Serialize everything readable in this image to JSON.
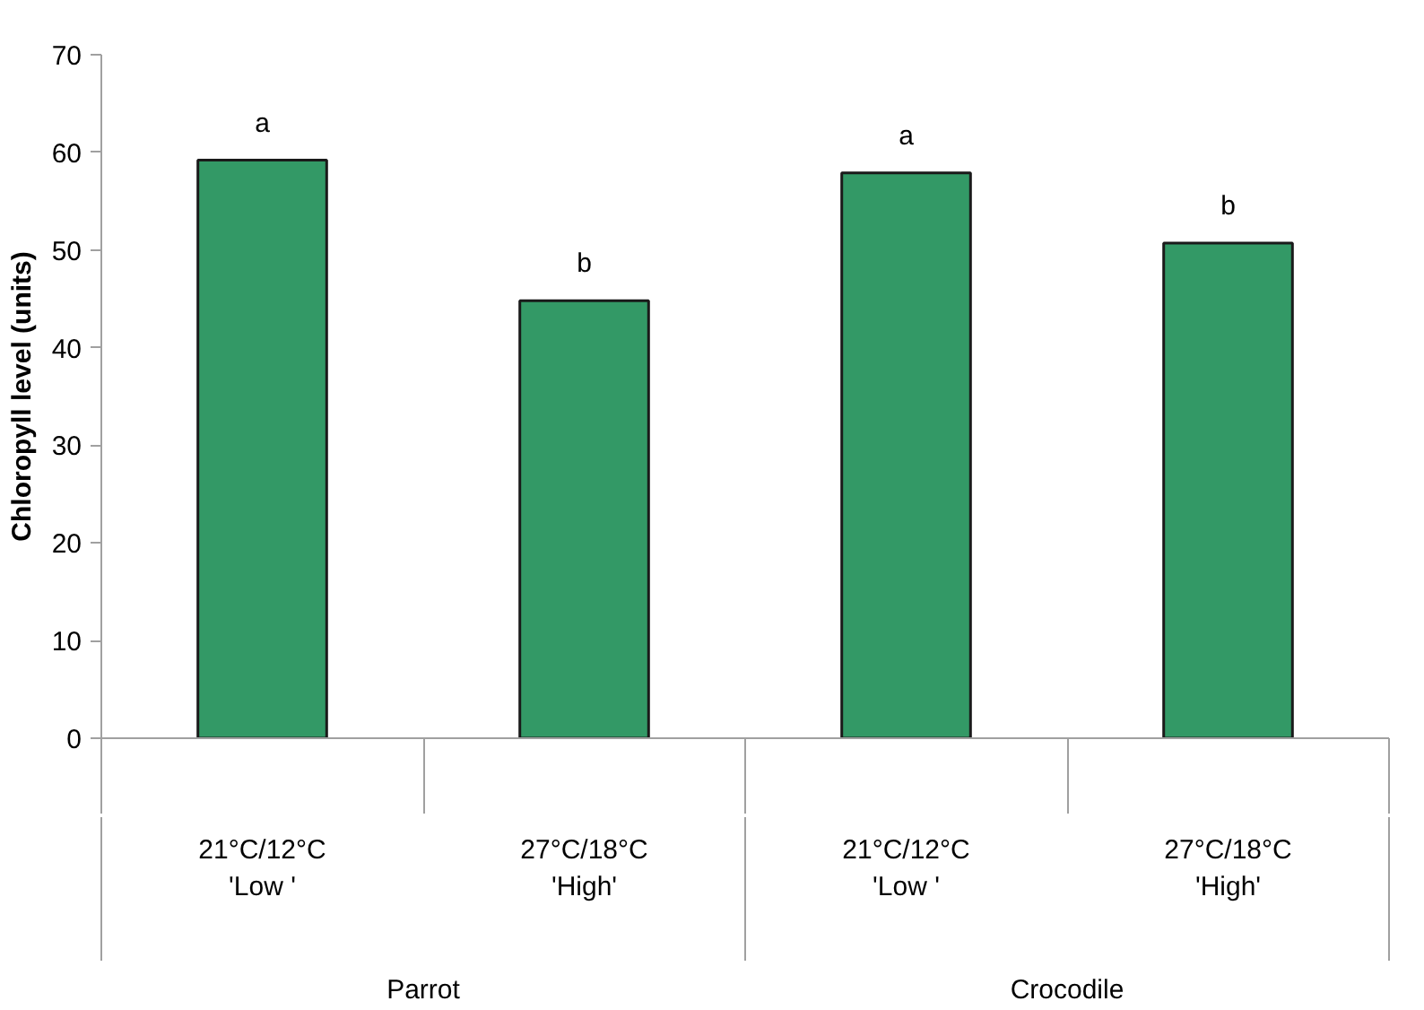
{
  "chart_data": {
    "type": "bar",
    "ylabel": "Chloropyll level (units)",
    "categories": [
      "21°C/12°C\n'Low '",
      "27°C/18°C\n'High'",
      "21°C/12°C\n'Low '",
      "27°C/18°C\n'High'"
    ],
    "values": [
      59.2,
      44.8,
      57.9,
      50.7
    ],
    "color": "#339966",
    "ylim": [
      0,
      70
    ],
    "yticks": [
      0,
      10,
      20,
      30,
      40,
      50,
      60,
      70
    ],
    "grid": false,
    "value_labels": [
      "a",
      "b",
      "a",
      "b"
    ],
    "annotations": [
      "Parrot",
      "Crocodile"
    ]
  }
}
